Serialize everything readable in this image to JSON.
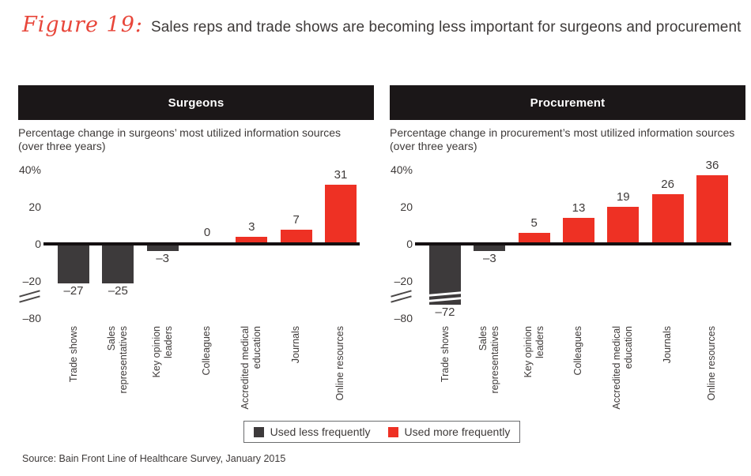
{
  "title": {
    "figure_label": "Figure 19:",
    "text": "Sales reps and trade shows are becoming less important for surgeons and procurement"
  },
  "colors": {
    "negative": "#3D3A3B",
    "positive": "#EE3124",
    "header_bg": "#1B1718",
    "axis": "#141011",
    "text": "#3E3A39",
    "figure_label_red": "#E8463A"
  },
  "chart_data": [
    {
      "type": "bar",
      "panel": "Surgeons",
      "subtitle": "Percentage change in surgeons’ most utilized information sources\n(over three years)",
      "categories": [
        "Trade shows",
        "Sales\nrepresentatives",
        "Key opinion\nleaders",
        "Colleagues",
        "Accredited medical\neducation",
        "Journals",
        "Online resources"
      ],
      "values": [
        -27,
        -25,
        -3,
        0,
        3,
        7,
        31
      ],
      "ylabel": "Percentage change",
      "yticks": [
        {
          "label": "40%",
          "value": 40
        },
        {
          "label": "20",
          "value": 20
        },
        {
          "label": "0",
          "value": 0
        },
        {
          "label": "–20",
          "value": -20
        },
        {
          "label": "–80",
          "value": -80
        }
      ],
      "ylim": [
        -80,
        40
      ],
      "axis_break": true,
      "grid": false,
      "legend_position": "bottom"
    },
    {
      "type": "bar",
      "panel": "Procurement",
      "subtitle": "Percentage change in procurement’s most utilized information sources\n(over three years)",
      "categories": [
        "Trade shows",
        "Sales\nrepresentatives",
        "Key opinion\nleaders",
        "Colleagues",
        "Accredited medical\neducation",
        "Journals",
        "Online resources"
      ],
      "values": [
        -72,
        -3,
        5,
        13,
        19,
        26,
        36
      ],
      "ylabel": "Percentage change",
      "yticks": [
        {
          "label": "40%",
          "value": 40
        },
        {
          "label": "20",
          "value": 20
        },
        {
          "label": "0",
          "value": 0
        },
        {
          "label": "–20",
          "value": -20
        },
        {
          "label": "–80",
          "value": -80
        }
      ],
      "ylim": [
        -80,
        40
      ],
      "axis_break": true,
      "grid": false,
      "legend_position": "bottom"
    }
  ],
  "legend": {
    "items": [
      {
        "label": "Used less frequently",
        "color": "#3D3A3B"
      },
      {
        "label": "Used more frequently",
        "color": "#EE3124"
      }
    ]
  },
  "source": "Source: Bain Front Line of Healthcare Survey, January 2015"
}
